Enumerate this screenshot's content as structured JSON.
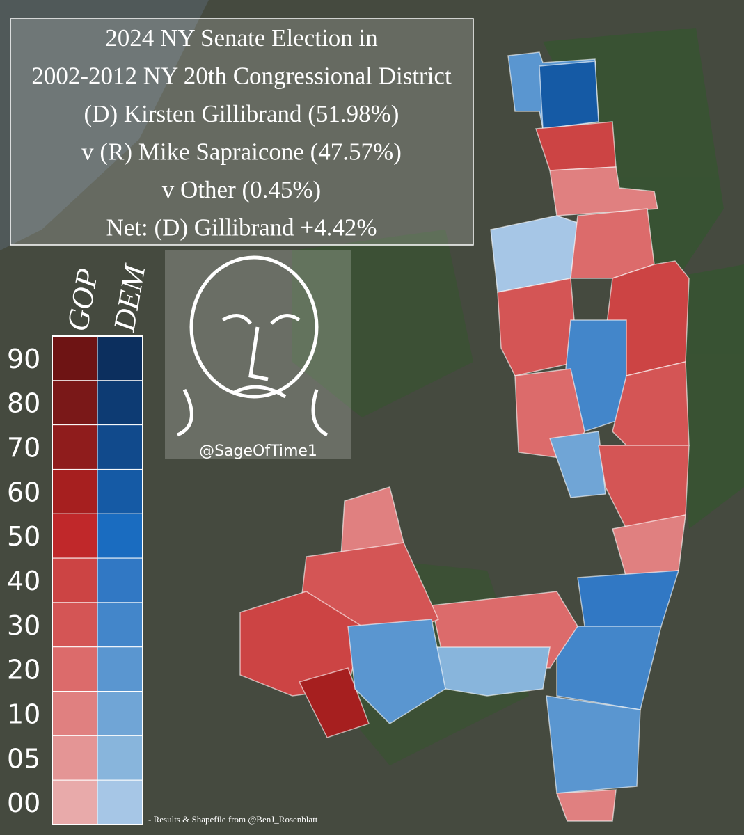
{
  "header": {
    "lines": [
      "2024 NY Senate Election in",
      "2002-2012 NY 20th Congressional District",
      "(D) Kirsten Gillibrand (51.98%)",
      "v (R) Mike Sapraicone (47.57%)",
      "v Other (0.45%)",
      "Net: (D) Gillibrand +4.42%"
    ]
  },
  "legend": {
    "headers": [
      "GOP",
      "DEM"
    ],
    "levels": [
      "90",
      "80",
      "70",
      "60",
      "50",
      "40",
      "30",
      "20",
      "10",
      "05",
      "00"
    ],
    "gop_colors": [
      "#6e1414",
      "#7a1818",
      "#8f1c1c",
      "#a61f1f",
      "#c0282a",
      "#cc4444",
      "#d45555",
      "#dc6b6b",
      "#e08080",
      "#e49595",
      "#e8aaaa"
    ],
    "dem_colors": [
      "#0c2f5e",
      "#0d3b73",
      "#114a8c",
      "#155aa5",
      "#1a6cc0",
      "#3178c4",
      "#4386ca",
      "#5a96d0",
      "#70a5d6",
      "#88b5dc",
      "#a6c6e6"
    ]
  },
  "watermark": {
    "handle": "@SageOfTime1"
  },
  "credit": {
    "text": "- Results & Shapefile from @BenJ_Rosenblatt"
  }
}
